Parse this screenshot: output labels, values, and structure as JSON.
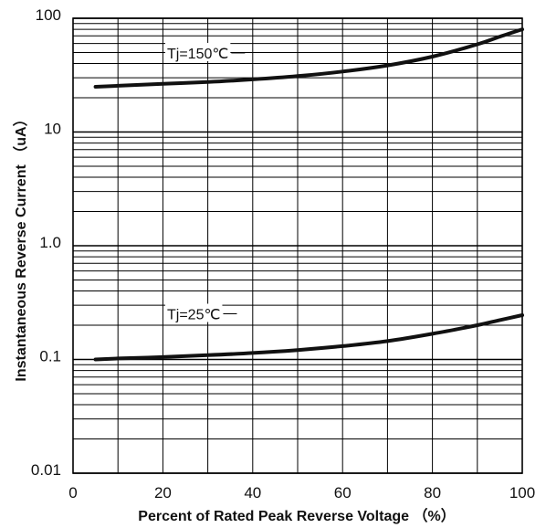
{
  "chart_data": {
    "type": "line",
    "title": "",
    "xlabel": "Percent of Rated Peak Reverse Voltage （%）",
    "ylabel": "Instantaneous Reverse Current （uA）",
    "xlim": [
      0,
      100
    ],
    "ylim": [
      0.01,
      100
    ],
    "yscale": "log",
    "grid": true,
    "x_ticks": [
      "0",
      "20",
      "40",
      "60",
      "80",
      "100"
    ],
    "y_ticks": [
      "0.01",
      "0.1",
      "1.0",
      "10",
      "100"
    ],
    "series": [
      {
        "name": "Tj=150℃",
        "x": [
          5,
          10,
          20,
          30,
          40,
          50,
          60,
          70,
          80,
          90,
          95,
          100
        ],
        "y": [
          25,
          25.5,
          26.5,
          27.5,
          29,
          31,
          34,
          38.5,
          46,
          59,
          69,
          80
        ]
      },
      {
        "name": "Tj=25℃",
        "x": [
          5,
          10,
          20,
          30,
          40,
          50,
          60,
          70,
          80,
          90,
          95,
          100
        ],
        "y": [
          0.1,
          0.102,
          0.105,
          0.109,
          0.114,
          0.121,
          0.131,
          0.145,
          0.168,
          0.2,
          0.222,
          0.245
        ]
      }
    ]
  }
}
